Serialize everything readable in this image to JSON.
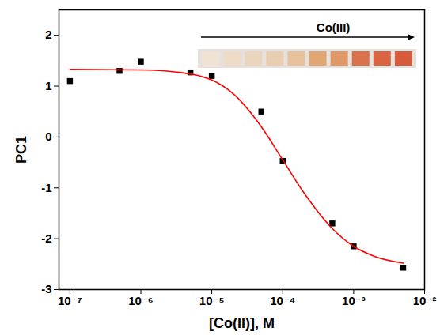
{
  "chart_data": {
    "type": "scatter",
    "x_label": "[Co(II)], M",
    "y_label": "PC1",
    "annotation": "Co(III)",
    "log": "x",
    "grid": false,
    "xlim": [
      7e-08,
      0.01
    ],
    "ylim": [
      -3,
      2.5
    ],
    "xticks": [
      {
        "value": 1e-07,
        "label": "10⁻⁷"
      },
      {
        "value": 1e-06,
        "label": "10⁻⁶"
      },
      {
        "value": 1e-05,
        "label": "10⁻⁵"
      },
      {
        "value": 0.0001,
        "label": "10⁻⁴"
      },
      {
        "value": 0.001,
        "label": "10⁻³"
      },
      {
        "value": 0.01,
        "label": "10⁻²"
      }
    ],
    "yticks": [
      -3,
      -2,
      -1,
      0,
      1,
      2
    ],
    "series": [
      {
        "type": "scatter",
        "color": "#000000",
        "marker": "square",
        "x": [
          1e-07,
          5e-07,
          1e-06,
          5e-06,
          1e-05,
          5e-05,
          0.0001,
          0.0005,
          0.001,
          0.005
        ],
        "values": [
          1.1,
          1.3,
          1.48,
          1.27,
          1.2,
          0.5,
          -0.47,
          -1.7,
          -2.15,
          -2.57
        ]
      },
      {
        "type": "line",
        "color": "#ff0000",
        "line_style": "solid",
        "x": [
          1e-07,
          1e-06,
          3e-06,
          1e-05,
          2e-05,
          5e-05,
          0.0001,
          0.0002,
          0.0005,
          0.001,
          0.002,
          0.005
        ],
        "values": [
          1.33,
          1.32,
          1.28,
          1.12,
          0.85,
          0.2,
          -0.45,
          -1.1,
          -1.8,
          -2.15,
          -2.35,
          -2.48
        ]
      }
    ]
  }
}
